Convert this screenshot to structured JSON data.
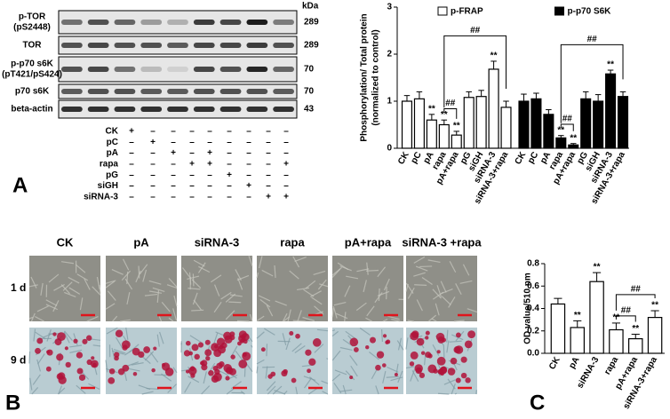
{
  "panel_labels": [
    "A",
    "B",
    "C"
  ],
  "blot": {
    "kda_header": "kDa",
    "rows": [
      {
        "label": [
          "p-TOR",
          "(pS2448)"
        ],
        "kda": 289
      },
      {
        "label": [
          "TOR"
        ],
        "kda": 289
      },
      {
        "label": [
          "p-p70 s6K",
          "(pT421/pS424)"
        ],
        "kda": 70
      },
      {
        "label": [
          "p70 s6K"
        ],
        "kda": 70
      },
      {
        "label": [
          "beta-actin"
        ],
        "kda": 43
      }
    ]
  },
  "treatments": {
    "rows": [
      {
        "label": "CK",
        "cells": [
          "+",
          "–",
          "–",
          "–",
          "–",
          "–",
          "–",
          "–",
          "–"
        ]
      },
      {
        "label": "pC",
        "cells": [
          "–",
          "+",
          "–",
          "–",
          "–",
          "–",
          "–",
          "–",
          "–"
        ]
      },
      {
        "label": "pA",
        "cells": [
          "–",
          "–",
          "+",
          "–",
          "+",
          "–",
          "–",
          "–",
          "–"
        ]
      },
      {
        "label": "rapa",
        "cells": [
          "–",
          "–",
          "–",
          "+",
          "+",
          "–",
          "–",
          "–",
          "+"
        ]
      },
      {
        "label": "pG",
        "cells": [
          "–",
          "–",
          "–",
          "–",
          "–",
          "+",
          "–",
          "–",
          "–"
        ]
      },
      {
        "label": "siGH",
        "cells": [
          "–",
          "–",
          "–",
          "–",
          "–",
          "–",
          "+",
          "–",
          "–"
        ]
      },
      {
        "label": "siRNA-3",
        "cells": [
          "–",
          "–",
          "–",
          "–",
          "–",
          "–",
          "–",
          "+",
          "+"
        ]
      }
    ]
  },
  "micrographs": {
    "columns": [
      "CK",
      "pA",
      "siRNA-3",
      "rapa",
      "pA+rapa",
      "siRNA-3 +rapa"
    ],
    "rows": [
      "1 d",
      "9 d"
    ]
  },
  "chart_data": [
    {
      "type": "bar",
      "ylabel": [
        "Phosphorylation/ Total protein",
        "(normalized to control)"
      ],
      "categories": [
        "CK",
        "pC",
        "pA",
        "rapa",
        "pA+rapa",
        "pG",
        "siGH",
        "siRNA-3",
        "siRNA-3+rapa"
      ],
      "series": [
        {
          "name": "p-FRAP",
          "color": "#ffffff",
          "values": [
            1.0,
            1.05,
            0.6,
            0.5,
            0.28,
            1.08,
            1.1,
            1.68,
            0.87
          ],
          "errors": [
            0.12,
            0.15,
            0.12,
            0.1,
            0.08,
            0.12,
            0.13,
            0.17,
            0.13
          ],
          "significance": [
            null,
            null,
            "**",
            "**",
            "**",
            null,
            null,
            "**",
            null
          ]
        },
        {
          "name": "p-p70 S6K",
          "color": "#000000",
          "values": [
            1.0,
            1.05,
            0.72,
            0.22,
            0.07,
            1.05,
            1.0,
            1.58,
            1.1
          ],
          "errors": [
            0.15,
            0.12,
            0.1,
            0.05,
            0.03,
            0.15,
            0.14,
            0.08,
            0.1
          ],
          "significance": [
            null,
            null,
            null,
            "**",
            "**",
            null,
            null,
            "**",
            null
          ]
        }
      ],
      "brackets": [
        {
          "from": "rapa",
          "to": "pA+rapa",
          "label": "##"
        },
        {
          "from": "rapa",
          "to": "siRNA-3+rapa",
          "label": "##"
        }
      ],
      "ylim": [
        0,
        3
      ],
      "yticks": [
        0,
        1,
        2,
        3
      ]
    },
    {
      "type": "bar",
      "ylabel": [
        "OD value/510 nm"
      ],
      "categories": [
        "CK",
        "pA",
        "siRNA-3",
        "rapa",
        "pA+rapa",
        "siRNA-3+rapa"
      ],
      "series": [
        {
          "name": null,
          "color": "#ffffff",
          "values": [
            0.44,
            0.23,
            0.64,
            0.21,
            0.13,
            0.32
          ],
          "errors": [
            0.05,
            0.06,
            0.08,
            0.06,
            0.04,
            0.06
          ],
          "significance": [
            null,
            "**",
            "**",
            "**",
            "**",
            "**"
          ]
        }
      ],
      "brackets": [
        {
          "from": "rapa",
          "to": "pA+rapa",
          "label": "##"
        },
        {
          "from": "rapa",
          "to": "siRNA-3+rapa",
          "label": "##"
        }
      ],
      "ylim": [
        0,
        0.8
      ],
      "yticks": [
        {
          "value": 0,
          "label": "0.0"
        },
        0.2,
        0.4,
        0.6,
        0.8
      ]
    }
  ]
}
